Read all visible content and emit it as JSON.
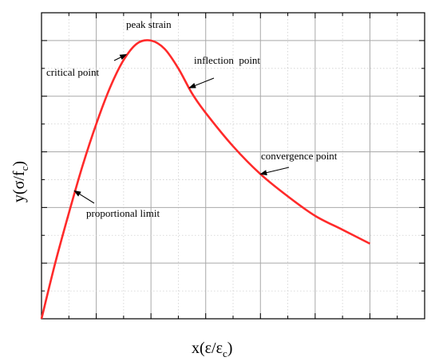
{
  "chart_data": {
    "type": "line",
    "title": "",
    "xlabel": "x(ε/ε",
    "xlabel_sub": "c",
    "xlabel_close": ")",
    "ylabel": "y(σ/f",
    "ylabel_sub": "c",
    "ylabel_close": ")",
    "xlim": [
      0,
      7
    ],
    "ylim": [
      0,
      1.1
    ],
    "grid": true,
    "tick_labels_shown": false,
    "series": [
      {
        "color": "#ff2a2a",
        "x": [
          0,
          0.25,
          0.5,
          0.75,
          1.0,
          1.25,
          1.5,
          1.75,
          2.0,
          2.25,
          2.5,
          2.75,
          3.0,
          3.5,
          4.0,
          4.5,
          5.0,
          5.5,
          6.0
        ],
        "y": [
          0,
          0.2,
          0.38,
          0.55,
          0.7,
          0.83,
          0.93,
          0.99,
          1.0,
          0.97,
          0.9,
          0.81,
          0.74,
          0.62,
          0.52,
          0.44,
          0.37,
          0.32,
          0.27
        ]
      }
    ],
    "annotations": [
      {
        "text": "peak strain",
        "x": 2.0,
        "y": 1.0
      },
      {
        "text": "critical point",
        "x": 1.55,
        "y": 0.95
      },
      {
        "text": "inflection  point",
        "x": 2.7,
        "y": 0.83
      },
      {
        "text": "convergence point",
        "x": 4.0,
        "y": 0.52
      },
      {
        "text": "proportional limit",
        "x": 0.6,
        "y": 0.46
      }
    ]
  }
}
